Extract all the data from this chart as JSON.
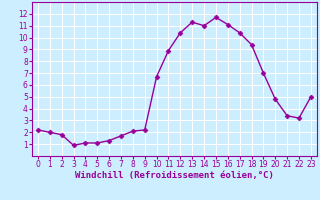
{
  "x": [
    0,
    1,
    2,
    3,
    4,
    5,
    6,
    7,
    8,
    9,
    10,
    11,
    12,
    13,
    14,
    15,
    16,
    17,
    18,
    19,
    20,
    21,
    22,
    23
  ],
  "y": [
    2.2,
    2.0,
    1.8,
    0.9,
    1.1,
    1.1,
    1.3,
    1.7,
    2.1,
    2.2,
    6.7,
    8.9,
    10.4,
    11.3,
    11.0,
    11.7,
    11.1,
    10.4,
    9.4,
    7.0,
    4.8,
    3.4,
    3.2,
    5.0
  ],
  "line_color": "#990099",
  "marker": "D",
  "markersize": 2.5,
  "linewidth": 1.0,
  "background_color": "#cceeff",
  "grid_color": "#ffffff",
  "xlabel": "Windchill (Refroidissement éolien,°C)",
  "xlabel_fontsize": 6.5,
  "xlim": [
    -0.5,
    23.5
  ],
  "ylim": [
    0,
    13
  ],
  "yticks": [
    1,
    2,
    3,
    4,
    5,
    6,
    7,
    8,
    9,
    10,
    11,
    12
  ],
  "xticks": [
    0,
    1,
    2,
    3,
    4,
    5,
    6,
    7,
    8,
    9,
    10,
    11,
    12,
    13,
    14,
    15,
    16,
    17,
    18,
    19,
    20,
    21,
    22,
    23
  ],
  "tick_fontsize": 5.5,
  "axis_color": "#990099",
  "spine_color": "#990099",
  "xlabel_color": "#990099"
}
